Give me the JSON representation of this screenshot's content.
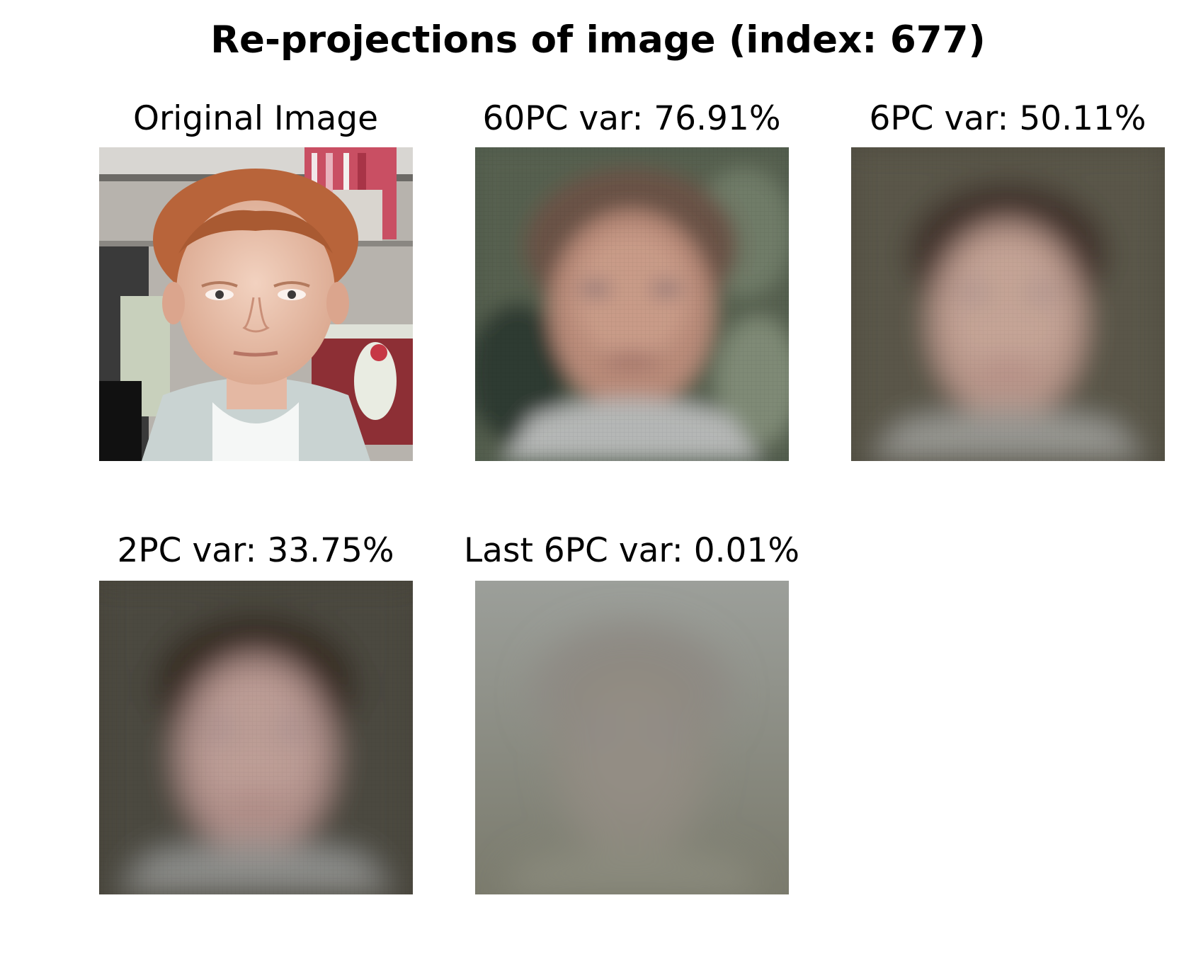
{
  "figure": {
    "title": "Re-projections of image (index: 677)",
    "panels": [
      {
        "caption": "Original Image"
      },
      {
        "caption": "60PC var: 76.91%"
      },
      {
        "caption": "6PC var: 50.11%"
      },
      {
        "caption": "2PC var: 33.75%"
      },
      {
        "caption": "Last 6PC var: 0.01%"
      }
    ]
  }
}
